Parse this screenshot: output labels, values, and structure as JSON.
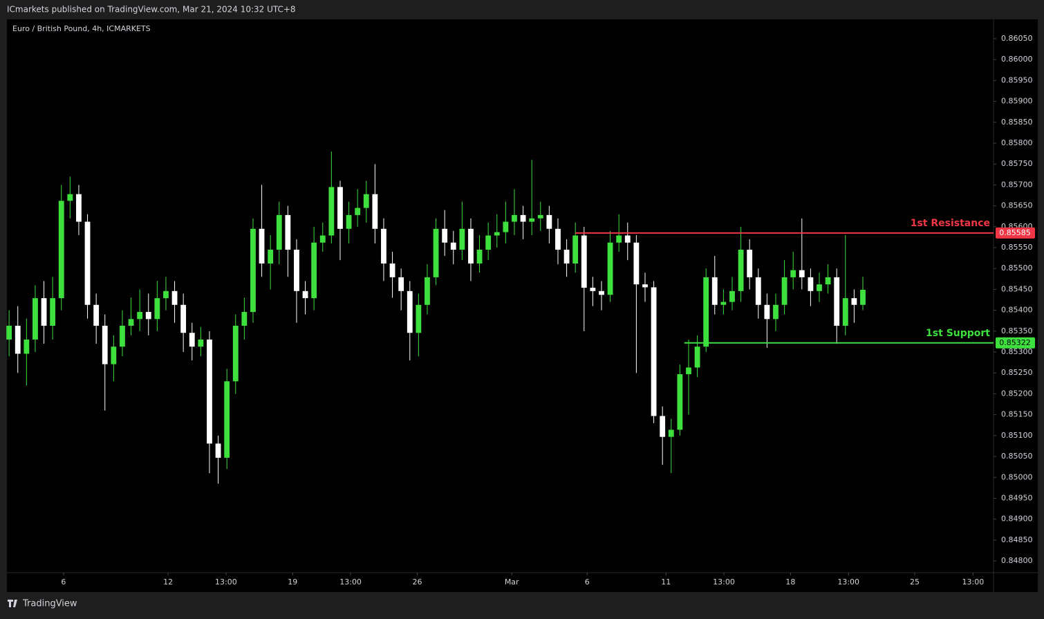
{
  "header": {
    "publisher": "ICmarkets published on TradingView.com, Mar 21, 2024 10:32 UTC+8",
    "brand": "TradingView"
  },
  "chart_data": {
    "type": "candlestick",
    "title": "Euro / British Pound, 4h, ICMARKETS",
    "up_color": "#3ee03e",
    "down_color": "#ffffff",
    "x": [
      0,
      2,
      4,
      6,
      8,
      10,
      12,
      14,
      16,
      18,
      20,
      22,
      24,
      26,
      28,
      30,
      32,
      34,
      36,
      38,
      40,
      42,
      44,
      46,
      48,
      50,
      52,
      54,
      56,
      58,
      60,
      62,
      64,
      66,
      68,
      70,
      72,
      74,
      76,
      78,
      80,
      82,
      84,
      86,
      88,
      90,
      92,
      94,
      96,
      98,
      100,
      102,
      104,
      106,
      108,
      110,
      112,
      114,
      116,
      118,
      120,
      122,
      124,
      126,
      128,
      130,
      132,
      134,
      136,
      138,
      140,
      142,
      144,
      146,
      148,
      150,
      152,
      154,
      156,
      158,
      160,
      162,
      164,
      166,
      168,
      170,
      172,
      174,
      176,
      178,
      180,
      182,
      184,
      186,
      188,
      190,
      192,
      194,
      196
    ],
    "ohlc": [
      [
        0.8533,
        0.854,
        0.8529,
        0.85363
      ],
      [
        0.85363,
        0.8541,
        0.8525,
        0.85296
      ],
      [
        0.85296,
        0.8538,
        0.8522,
        0.8533
      ],
      [
        0.8533,
        0.8546,
        0.853,
        0.85429
      ],
      [
        0.85429,
        0.8547,
        0.8532,
        0.85363
      ],
      [
        0.85363,
        0.8548,
        0.8533,
        0.85429
      ],
      [
        0.85429,
        0.857,
        0.854,
        0.85662
      ],
      [
        0.85662,
        0.8572,
        0.8562,
        0.85678
      ],
      [
        0.85678,
        0.857,
        0.8558,
        0.85612
      ],
      [
        0.85612,
        0.8563,
        0.8538,
        0.85413
      ],
      [
        0.85413,
        0.8544,
        0.8532,
        0.85363
      ],
      [
        0.85363,
        0.8539,
        0.8516,
        0.85271
      ],
      [
        0.85271,
        0.8534,
        0.8523,
        0.85313
      ],
      [
        0.85313,
        0.854,
        0.8529,
        0.85363
      ],
      [
        0.85363,
        0.8543,
        0.8534,
        0.85379
      ],
      [
        0.85379,
        0.8545,
        0.8535,
        0.85396
      ],
      [
        0.85396,
        0.8544,
        0.8534,
        0.85379
      ],
      [
        0.85379,
        0.8547,
        0.8535,
        0.85429
      ],
      [
        0.85429,
        0.8548,
        0.854,
        0.85446
      ],
      [
        0.85446,
        0.8547,
        0.8537,
        0.85413
      ],
      [
        0.85413,
        0.8544,
        0.853,
        0.85346
      ],
      [
        0.85346,
        0.8537,
        0.8528,
        0.85313
      ],
      [
        0.85313,
        0.8536,
        0.8529,
        0.8533
      ],
      [
        0.8533,
        0.8535,
        0.8501,
        0.85081
      ],
      [
        0.85081,
        0.851,
        0.84985,
        0.85047
      ],
      [
        0.85047,
        0.8526,
        0.8502,
        0.8523
      ],
      [
        0.8523,
        0.8539,
        0.852,
        0.85363
      ],
      [
        0.85363,
        0.8543,
        0.8533,
        0.85396
      ],
      [
        0.85396,
        0.8562,
        0.8537,
        0.85595
      ],
      [
        0.85595,
        0.857,
        0.8548,
        0.85512
      ],
      [
        0.85512,
        0.8558,
        0.8545,
        0.85545
      ],
      [
        0.85545,
        0.8566,
        0.8551,
        0.85628
      ],
      [
        0.85628,
        0.8565,
        0.8548,
        0.85545
      ],
      [
        0.85545,
        0.8557,
        0.8537,
        0.85446
      ],
      [
        0.85446,
        0.8547,
        0.8539,
        0.85429
      ],
      [
        0.85429,
        0.856,
        0.854,
        0.85562
      ],
      [
        0.85562,
        0.8561,
        0.8554,
        0.85579
      ],
      [
        0.85579,
        0.8578,
        0.8556,
        0.85695
      ],
      [
        0.85695,
        0.8571,
        0.8552,
        0.85595
      ],
      [
        0.85595,
        0.8566,
        0.8556,
        0.85628
      ],
      [
        0.85628,
        0.8569,
        0.856,
        0.85645
      ],
      [
        0.85645,
        0.8571,
        0.8561,
        0.85678
      ],
      [
        0.85678,
        0.8575,
        0.8556,
        0.85595
      ],
      [
        0.85595,
        0.8562,
        0.8547,
        0.85512
      ],
      [
        0.85512,
        0.8554,
        0.8543,
        0.85479
      ],
      [
        0.85479,
        0.855,
        0.854,
        0.85446
      ],
      [
        0.85446,
        0.8547,
        0.8528,
        0.85346
      ],
      [
        0.85346,
        0.8544,
        0.8529,
        0.85413
      ],
      [
        0.85413,
        0.8551,
        0.8539,
        0.85479
      ],
      [
        0.85479,
        0.8562,
        0.8546,
        0.85595
      ],
      [
        0.85595,
        0.8564,
        0.8553,
        0.85562
      ],
      [
        0.85562,
        0.8559,
        0.8551,
        0.85545
      ],
      [
        0.85545,
        0.8566,
        0.8552,
        0.85595
      ],
      [
        0.85595,
        0.8562,
        0.8547,
        0.85512
      ],
      [
        0.85512,
        0.8558,
        0.8549,
        0.85545
      ],
      [
        0.85545,
        0.8561,
        0.8552,
        0.85579
      ],
      [
        0.85579,
        0.8563,
        0.8555,
        0.85587
      ],
      [
        0.85587,
        0.8566,
        0.8556,
        0.85612
      ],
      [
        0.85612,
        0.8569,
        0.8558,
        0.85628
      ],
      [
        0.85628,
        0.8565,
        0.8557,
        0.85612
      ],
      [
        0.85612,
        0.8576,
        0.8558,
        0.8562
      ],
      [
        0.8562,
        0.8566,
        0.8559,
        0.85628
      ],
      [
        0.85628,
        0.8565,
        0.8556,
        0.85595
      ],
      [
        0.85595,
        0.8562,
        0.8551,
        0.85545
      ],
      [
        0.85545,
        0.8557,
        0.8548,
        0.85512
      ],
      [
        0.85512,
        0.8561,
        0.8549,
        0.85579
      ],
      [
        0.85579,
        0.856,
        0.8535,
        0.85454
      ],
      [
        0.85454,
        0.8548,
        0.8541,
        0.85446
      ],
      [
        0.85446,
        0.8547,
        0.854,
        0.85437
      ],
      [
        0.85437,
        0.8559,
        0.8542,
        0.85562
      ],
      [
        0.85562,
        0.8563,
        0.8554,
        0.85579
      ],
      [
        0.85579,
        0.8561,
        0.8552,
        0.85562
      ],
      [
        0.85562,
        0.8558,
        0.8525,
        0.85462
      ],
      [
        0.85462,
        0.8549,
        0.8542,
        0.85455
      ],
      [
        0.85455,
        0.8547,
        0.8513,
        0.85147
      ],
      [
        0.85147,
        0.8517,
        0.8503,
        0.85097
      ],
      [
        0.85097,
        0.8514,
        0.8501,
        0.85114
      ],
      [
        0.85114,
        0.8527,
        0.851,
        0.85247
      ],
      [
        0.85247,
        0.8533,
        0.8515,
        0.85263
      ],
      [
        0.85263,
        0.8534,
        0.8524,
        0.85313
      ],
      [
        0.85313,
        0.855,
        0.853,
        0.85479
      ],
      [
        0.85479,
        0.8553,
        0.8539,
        0.85413
      ],
      [
        0.85413,
        0.8545,
        0.8539,
        0.8542
      ],
      [
        0.8542,
        0.8548,
        0.854,
        0.85446
      ],
      [
        0.85446,
        0.856,
        0.8542,
        0.85545
      ],
      [
        0.85545,
        0.8557,
        0.8545,
        0.85479
      ],
      [
        0.85479,
        0.855,
        0.8538,
        0.85413
      ],
      [
        0.85413,
        0.8544,
        0.8531,
        0.85379
      ],
      [
        0.85379,
        0.8544,
        0.8535,
        0.85413
      ],
      [
        0.85413,
        0.8552,
        0.8539,
        0.85479
      ],
      [
        0.85479,
        0.8554,
        0.8545,
        0.85496
      ],
      [
        0.85496,
        0.8562,
        0.8545,
        0.85479
      ],
      [
        0.85479,
        0.855,
        0.8541,
        0.85446
      ],
      [
        0.85446,
        0.8549,
        0.8542,
        0.85462
      ],
      [
        0.85462,
        0.8551,
        0.8544,
        0.85479
      ],
      [
        0.85479,
        0.855,
        0.8532,
        0.85363
      ],
      [
        0.85363,
        0.8558,
        0.8534,
        0.85429
      ],
      [
        0.85429,
        0.8545,
        0.8537,
        0.85413
      ],
      [
        0.85413,
        0.8548,
        0.854,
        0.85449
      ]
    ],
    "levels": [
      {
        "name": "1st Resistance",
        "value": 0.85585,
        "label": "0.85585",
        "color": "#f23645",
        "x_start": 130
      },
      {
        "name": "1st Support",
        "value": 0.85322,
        "label": "0.85322",
        "color": "#3ee03e",
        "x_start": 155
      }
    ],
    "xlim": [
      -0.5,
      226
    ],
    "xticks": [
      {
        "value": 12.5,
        "label": "6"
      },
      {
        "value": 36.5,
        "label": "12"
      },
      {
        "value": 49.8,
        "label": "13:00"
      },
      {
        "value": 65.1,
        "label": "19"
      },
      {
        "value": 78.4,
        "label": "13:00"
      },
      {
        "value": 93.7,
        "label": "26"
      },
      {
        "value": 115.4,
        "label": "Mar"
      },
      {
        "value": 132.7,
        "label": "6"
      },
      {
        "value": 150.8,
        "label": "11"
      },
      {
        "value": 164.1,
        "label": "13:00"
      },
      {
        "value": 179.4,
        "label": "18"
      },
      {
        "value": 192.7,
        "label": "13:00"
      },
      {
        "value": 207.9,
        "label": "25"
      },
      {
        "value": 221.3,
        "label": "13:00"
      }
    ],
    "ylim": [
      0.84772,
      0.86093
    ],
    "yticks": [
      {
        "value": 0.8605,
        "label": "0.86050"
      },
      {
        "value": 0.86,
        "label": "0.86000"
      },
      {
        "value": 0.8595,
        "label": "0.85950"
      },
      {
        "value": 0.859,
        "label": "0.85900"
      },
      {
        "value": 0.8585,
        "label": "0.85850"
      },
      {
        "value": 0.858,
        "label": "0.85800"
      },
      {
        "value": 0.8575,
        "label": "0.85750"
      },
      {
        "value": 0.857,
        "label": "0.85700"
      },
      {
        "value": 0.8565,
        "label": "0.85650"
      },
      {
        "value": 0.856,
        "label": "0.85600"
      },
      {
        "value": 0.8555,
        "label": "0.85550"
      },
      {
        "value": 0.855,
        "label": "0.85500"
      },
      {
        "value": 0.8545,
        "label": "0.85450"
      },
      {
        "value": 0.854,
        "label": "0.85400"
      },
      {
        "value": 0.8535,
        "label": "0.85350"
      },
      {
        "value": 0.853,
        "label": "0.85300"
      },
      {
        "value": 0.8525,
        "label": "0.85250"
      },
      {
        "value": 0.852,
        "label": "0.85200"
      },
      {
        "value": 0.8515,
        "label": "0.85150"
      },
      {
        "value": 0.851,
        "label": "0.85100"
      },
      {
        "value": 0.8505,
        "label": "0.85050"
      },
      {
        "value": 0.85,
        "label": "0.85000"
      },
      {
        "value": 0.8495,
        "label": "0.84950"
      },
      {
        "value": 0.849,
        "label": "0.84900"
      },
      {
        "value": 0.8485,
        "label": "0.84850"
      },
      {
        "value": 0.848,
        "label": "0.84800"
      }
    ]
  }
}
